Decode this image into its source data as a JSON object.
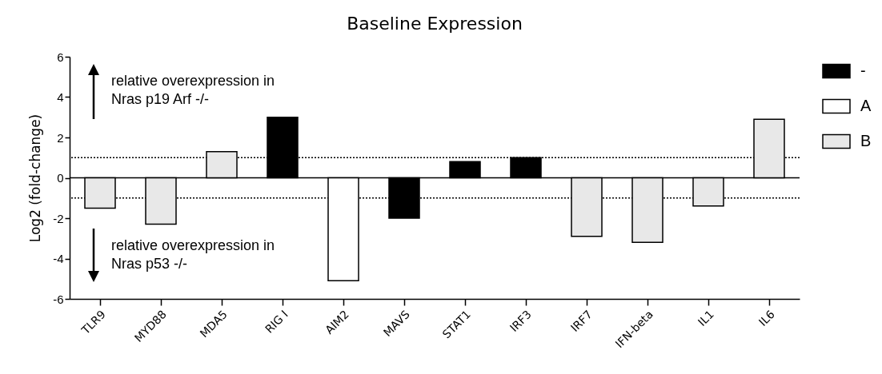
{
  "chart_data": {
    "type": "bar",
    "title": "Baseline Expression",
    "ylabel": "Log2 (fold-change)",
    "categories": [
      "TLR9",
      "MYD88",
      "MDA5",
      "RIG I",
      "AIM2",
      "MAVS",
      "STAT1",
      "IRF3",
      "IRF7",
      "IFN-beta",
      "IL1",
      "IL6"
    ],
    "series": [
      {
        "name": "-",
        "color": "#000000",
        "values": [
          null,
          null,
          null,
          3.0,
          null,
          -2.0,
          0.8,
          1.0,
          null,
          null,
          null,
          null
        ]
      },
      {
        "name": "A",
        "color": "#ffffff",
        "values": [
          null,
          null,
          null,
          null,
          -5.1,
          null,
          null,
          null,
          null,
          null,
          null,
          null
        ]
      },
      {
        "name": "B",
        "color": "#e8e8e8",
        "values": [
          -1.5,
          -2.3,
          1.3,
          null,
          null,
          null,
          null,
          null,
          -2.9,
          -3.2,
          -1.4,
          2.9
        ]
      }
    ],
    "ylim": [
      -6,
      6
    ],
    "yticks": [
      -6,
      -4,
      -2,
      0,
      2,
      4,
      6
    ],
    "ref_lines": [
      {
        "axis": "y",
        "value": 1,
        "line_style": "dotted",
        "color": "#000000"
      },
      {
        "axis": "y",
        "value": -1,
        "line_style": "dotted",
        "color": "#000000"
      },
      {
        "axis": "y",
        "value": 0,
        "line_style": "solid",
        "color": "#000000"
      }
    ],
    "annotations": [
      "relative overexpression in\nNras p19 Arf -/-",
      "relative overexpression in\nNras p53 -/-"
    ],
    "legend": "top right"
  }
}
